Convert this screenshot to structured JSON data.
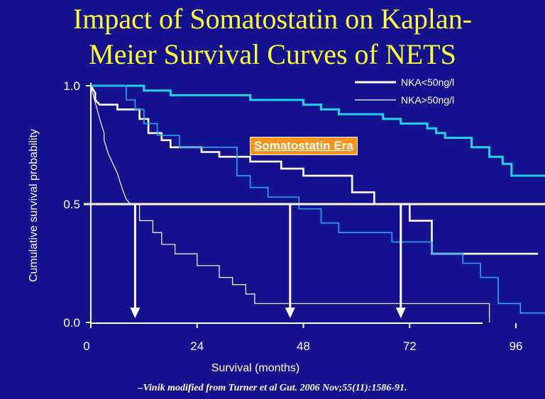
{
  "title": {
    "line1": "Impact of Somatostatin on Kaplan-",
    "line2": "Meier Survival Curves of NETS"
  },
  "annotation": "Somatostatin Era",
  "citation": "–Vinik modified from Turner et al Gut. 2006 Nov;55(11):1586-91.",
  "colors": {
    "background": "#14128e",
    "title": "#ffff33",
    "nka_low": "#ffffff",
    "nka_high": "#ffffff",
    "somatostatin_low": "#22d3e6",
    "somatostatin_high": "#2aa6e6",
    "annotation_bg": "#f7941d",
    "median_line": "#ffffff"
  },
  "chart_data": {
    "type": "line",
    "step": true,
    "xlabel": "Survival (months)",
    "ylabel": "Cumulative survival probability",
    "xlim": [
      0,
      120
    ],
    "ylim": [
      0,
      1.0
    ],
    "x_ticks": [
      "0",
      "24",
      "48",
      "72",
      "96"
    ],
    "x_tick_values": [
      0,
      24,
      48,
      72,
      96
    ],
    "y_ticks": [
      "0.0",
      "0.5",
      "1.0"
    ],
    "y_tick_values": [
      0,
      0.5,
      1.0
    ],
    "legend": {
      "position": "top-right",
      "entries": [
        {
          "label": "NKA<50ng/l",
          "line": "thick"
        },
        {
          "label": "NKA>50ng/l",
          "line": "thin"
        }
      ]
    },
    "median_reference": {
      "y": 0.5,
      "x_end": 112,
      "arrows_at_x": [
        10,
        45,
        70
      ]
    },
    "series": [
      {
        "group": "NKA<50ng/l",
        "era": "pre",
        "points": [
          [
            0,
            1.0
          ],
          [
            1,
            0.97
          ],
          [
            1,
            0.94
          ],
          [
            2,
            0.92
          ],
          [
            6,
            0.92
          ],
          [
            6,
            0.9
          ],
          [
            11,
            0.9
          ],
          [
            11,
            0.86
          ],
          [
            13,
            0.86
          ],
          [
            13,
            0.8
          ],
          [
            16,
            0.8
          ],
          [
            16,
            0.77
          ],
          [
            18,
            0.77
          ],
          [
            18,
            0.74
          ],
          [
            25,
            0.74
          ],
          [
            25,
            0.72
          ],
          [
            29,
            0.72
          ],
          [
            29,
            0.7
          ],
          [
            36,
            0.7
          ],
          [
            36,
            0.68
          ],
          [
            43,
            0.68
          ],
          [
            43,
            0.65
          ],
          [
            48,
            0.65
          ],
          [
            48,
            0.62
          ],
          [
            59,
            0.62
          ],
          [
            59,
            0.55
          ],
          [
            64,
            0.55
          ],
          [
            64,
            0.5
          ],
          [
            72,
            0.5
          ],
          [
            72,
            0.43
          ],
          [
            77,
            0.43
          ],
          [
            77,
            0.29
          ],
          [
            101,
            0.29
          ]
        ]
      },
      {
        "group": "NKA>50ng/l",
        "era": "pre",
        "points": [
          [
            0,
            1.0
          ],
          [
            1,
            0.93
          ],
          [
            2,
            0.86
          ],
          [
            3,
            0.8
          ],
          [
            3,
            0.77
          ],
          [
            4,
            0.71
          ],
          [
            6,
            0.63
          ],
          [
            7,
            0.57
          ],
          [
            8,
            0.52
          ],
          [
            9,
            0.5
          ],
          [
            11,
            0.5
          ],
          [
            11,
            0.43
          ],
          [
            14,
            0.43
          ],
          [
            14,
            0.38
          ],
          [
            16,
            0.38
          ],
          [
            16,
            0.33
          ],
          [
            19,
            0.33
          ],
          [
            19,
            0.29
          ],
          [
            24,
            0.29
          ],
          [
            24,
            0.24
          ],
          [
            29,
            0.24
          ],
          [
            29,
            0.19
          ],
          [
            32,
            0.19
          ],
          [
            32,
            0.16
          ],
          [
            35,
            0.16
          ],
          [
            35,
            0.12
          ],
          [
            37,
            0.12
          ],
          [
            37,
            0.08
          ],
          [
            90,
            0.08
          ],
          [
            90,
            0.0
          ]
        ]
      },
      {
        "group": "NKA<50ng/l",
        "era": "somatostatin",
        "points": [
          [
            0,
            1.0
          ],
          [
            12,
            1.0
          ],
          [
            12,
            0.98
          ],
          [
            18,
            0.98
          ],
          [
            18,
            0.96
          ],
          [
            36,
            0.96
          ],
          [
            36,
            0.94
          ],
          [
            48,
            0.94
          ],
          [
            48,
            0.92
          ],
          [
            52,
            0.92
          ],
          [
            52,
            0.9
          ],
          [
            56,
            0.9
          ],
          [
            56,
            0.88
          ],
          [
            66,
            0.88
          ],
          [
            66,
            0.86
          ],
          [
            70,
            0.86
          ],
          [
            70,
            0.84
          ],
          [
            76,
            0.84
          ],
          [
            76,
            0.82
          ],
          [
            78,
            0.82
          ],
          [
            78,
            0.8
          ],
          [
            80,
            0.8
          ],
          [
            80,
            0.78
          ],
          [
            86,
            0.78
          ],
          [
            86,
            0.74
          ],
          [
            90,
            0.74
          ],
          [
            90,
            0.7
          ],
          [
            93,
            0.7
          ],
          [
            93,
            0.67
          ],
          [
            95,
            0.67
          ],
          [
            95,
            0.62
          ],
          [
            108,
            0.62
          ]
        ]
      },
      {
        "group": "NKA>50ng/l",
        "era": "somatostatin",
        "points": [
          [
            0,
            1.0
          ],
          [
            8,
            1.0
          ],
          [
            8,
            0.94
          ],
          [
            10,
            0.94
          ],
          [
            10,
            0.9
          ],
          [
            12,
            0.9
          ],
          [
            12,
            0.84
          ],
          [
            15,
            0.84
          ],
          [
            15,
            0.79
          ],
          [
            20,
            0.79
          ],
          [
            20,
            0.74
          ],
          [
            33,
            0.74
          ],
          [
            33,
            0.62
          ],
          [
            36,
            0.62
          ],
          [
            36,
            0.57
          ],
          [
            40,
            0.57
          ],
          [
            40,
            0.53
          ],
          [
            47,
            0.53
          ],
          [
            47,
            0.48
          ],
          [
            52,
            0.48
          ],
          [
            52,
            0.42
          ],
          [
            56,
            0.42
          ],
          [
            56,
            0.38
          ],
          [
            68,
            0.38
          ],
          [
            68,
            0.34
          ],
          [
            77,
            0.34
          ],
          [
            77,
            0.29
          ],
          [
            84,
            0.29
          ],
          [
            84,
            0.25
          ],
          [
            88,
            0.25
          ],
          [
            88,
            0.19
          ],
          [
            92,
            0.19
          ],
          [
            92,
            0.08
          ],
          [
            97,
            0.08
          ],
          [
            97,
            0.04
          ],
          [
            119,
            0.04
          ]
        ]
      }
    ]
  }
}
